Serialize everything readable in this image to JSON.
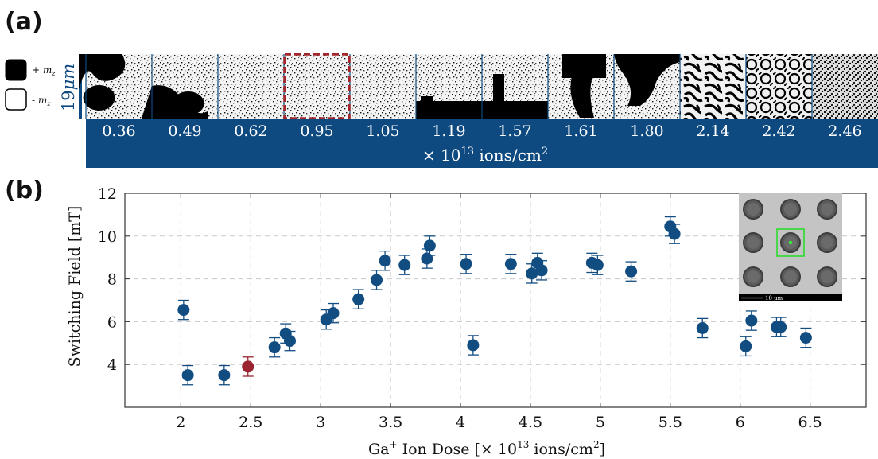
{
  "panel_a": {
    "label": "(a)",
    "legend": [
      {
        "symbol": "+ m",
        "subscript": "z",
        "swatch": "#000000"
      },
      {
        "symbol": "- m",
        "subscript": "z",
        "swatch": "#ffffff"
      }
    ],
    "scale_value": "19",
    "scale_unit": "μm",
    "doses": [
      "0.36",
      "0.49",
      "0.62",
      "0.95",
      "1.05",
      "1.19",
      "1.57",
      "1.61",
      "1.80",
      "2.14",
      "2.42",
      "2.46"
    ],
    "highlighted_index": 3,
    "unit_prefix": "× 10",
    "unit_exponent": "13",
    "unit_suffix": " ions/cm",
    "unit_suffix_exponent": "2",
    "bar_color": "#0e4a80",
    "highlight_color": "#a3262d"
  },
  "panel_b": {
    "label": "(b)",
    "ylabel": "Switching Field [mT]",
    "xlabel_prefix": "Ga",
    "xlabel_sup": "+",
    "xlabel_middle": " Ion Dose [× 10",
    "xlabel_exp": "13",
    "xlabel_unit": " ions/cm",
    "xlabel_unit_exp": "2",
    "xlabel_close": "]",
    "inset_scale_label": "10 μm"
  },
  "chart_data": {
    "type": "scatter",
    "xlim": [
      1.6,
      6.9
    ],
    "ylim": [
      2,
      12
    ],
    "xticks": [
      2,
      2.5,
      3,
      3.5,
      4,
      4.5,
      5,
      5.5,
      6,
      6.5
    ],
    "xtick_labels": [
      "2",
      "2.5",
      "3",
      "3.5",
      "4",
      "4.5",
      "5",
      "5.5",
      "6",
      "6.5"
    ],
    "yticks": [
      4,
      6,
      8,
      10,
      12
    ],
    "ytick_labels": [
      "4",
      "6",
      "8",
      "10",
      "12"
    ],
    "grid": true,
    "point_color": "#124d82",
    "highlight_color": "#9a2530",
    "points": [
      {
        "x": 2.02,
        "y": 6.55,
        "err": 0.45
      },
      {
        "x": 2.05,
        "y": 3.5,
        "err": 0.45
      },
      {
        "x": 2.31,
        "y": 3.5,
        "err": 0.45
      },
      {
        "x": 2.48,
        "y": 3.9,
        "err": 0.45,
        "highlight": true
      },
      {
        "x": 2.67,
        "y": 4.8,
        "err": 0.45
      },
      {
        "x": 2.75,
        "y": 5.45,
        "err": 0.45
      },
      {
        "x": 2.78,
        "y": 5.1,
        "err": 0.45
      },
      {
        "x": 3.04,
        "y": 6.1,
        "err": 0.45
      },
      {
        "x": 3.09,
        "y": 6.4,
        "err": 0.45
      },
      {
        "x": 3.27,
        "y": 7.05,
        "err": 0.45
      },
      {
        "x": 3.4,
        "y": 7.95,
        "err": 0.45
      },
      {
        "x": 3.46,
        "y": 8.85,
        "err": 0.45
      },
      {
        "x": 3.6,
        "y": 8.65,
        "err": 0.45
      },
      {
        "x": 3.76,
        "y": 8.95,
        "err": 0.45
      },
      {
        "x": 3.78,
        "y": 9.55,
        "err": 0.45
      },
      {
        "x": 4.04,
        "y": 8.7,
        "err": 0.45
      },
      {
        "x": 4.09,
        "y": 4.9,
        "err": 0.45
      },
      {
        "x": 4.36,
        "y": 8.7,
        "err": 0.45
      },
      {
        "x": 4.51,
        "y": 8.25,
        "err": 0.45
      },
      {
        "x": 4.55,
        "y": 8.75,
        "err": 0.45
      },
      {
        "x": 4.58,
        "y": 8.4,
        "err": 0.45
      },
      {
        "x": 4.94,
        "y": 8.75,
        "err": 0.45
      },
      {
        "x": 4.98,
        "y": 8.65,
        "err": 0.45
      },
      {
        "x": 5.22,
        "y": 8.35,
        "err": 0.45
      },
      {
        "x": 5.5,
        "y": 10.45,
        "err": 0.45
      },
      {
        "x": 5.53,
        "y": 10.1,
        "err": 0.45
      },
      {
        "x": 5.73,
        "y": 5.7,
        "err": 0.45
      },
      {
        "x": 6.04,
        "y": 4.85,
        "err": 0.45
      },
      {
        "x": 6.08,
        "y": 6.05,
        "err": 0.45
      },
      {
        "x": 6.26,
        "y": 5.75,
        "err": 0.45
      },
      {
        "x": 6.29,
        "y": 5.75,
        "err": 0.45
      },
      {
        "x": 6.47,
        "y": 5.25,
        "err": 0.45
      }
    ]
  }
}
